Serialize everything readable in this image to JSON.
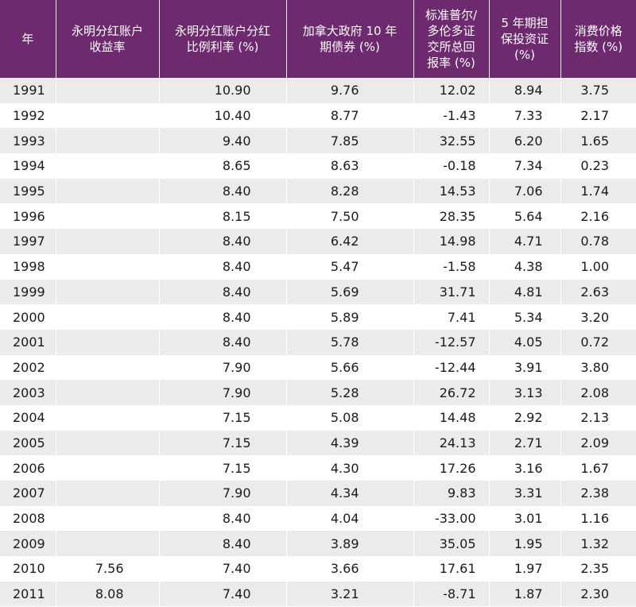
{
  "table": {
    "headers": [
      "年",
      "永明分红账户\n收益率",
      "永明分红账户分红\n比例利率 (%)",
      "加拿大政府 10 年\n期债券 (%)",
      "标准普尔/\n多伦多证\n交所总回\n报率 (%)",
      "5 年期担\n保投资证\n(%)",
      "消费价格\n指数 (%)"
    ],
    "rows": [
      [
        "1991",
        "",
        "10.90",
        "9.76",
        "12.02",
        "8.94",
        "3.75"
      ],
      [
        "1992",
        "",
        "10.40",
        "8.77",
        "-1.43",
        "7.33",
        "2.17"
      ],
      [
        "1993",
        "",
        "9.40",
        "7.85",
        "32.55",
        "6.20",
        "1.65"
      ],
      [
        "1994",
        "",
        "8.65",
        "8.63",
        "-0.18",
        "7.34",
        "0.23"
      ],
      [
        "1995",
        "",
        "8.40",
        "8.28",
        "14.53",
        "7.06",
        "1.74"
      ],
      [
        "1996",
        "",
        "8.15",
        "7.50",
        "28.35",
        "5.64",
        "2.16"
      ],
      [
        "1997",
        "",
        "8.40",
        "6.42",
        "14.98",
        "4.71",
        "0.78"
      ],
      [
        "1998",
        "",
        "8.40",
        "5.47",
        "-1.58",
        "4.38",
        "1.00"
      ],
      [
        "1999",
        "",
        "8.40",
        "5.69",
        "31.71",
        "4.81",
        "2.63"
      ],
      [
        "2000",
        "",
        "8.40",
        "5.89",
        "7.41",
        "5.34",
        "3.20"
      ],
      [
        "2001",
        "",
        "8.40",
        "5.78",
        "-12.57",
        "4.05",
        "0.72"
      ],
      [
        "2002",
        "",
        "7.90",
        "5.66",
        "-12.44",
        "3.91",
        "3.80"
      ],
      [
        "2003",
        "",
        "7.90",
        "5.28",
        "26.72",
        "3.13",
        "2.08"
      ],
      [
        "2004",
        "",
        "7.15",
        "5.08",
        "14.48",
        "2.92",
        "2.13"
      ],
      [
        "2005",
        "",
        "7.15",
        "4.39",
        "24.13",
        "2.71",
        "2.09"
      ],
      [
        "2006",
        "",
        "7.15",
        "4.30",
        "17.26",
        "3.16",
        "1.67"
      ],
      [
        "2007",
        "",
        "7.90",
        "4.34",
        "9.83",
        "3.31",
        "2.38"
      ],
      [
        "2008",
        "",
        "8.40",
        "4.04",
        "-33.00",
        "3.01",
        "1.16"
      ],
      [
        "2009",
        "",
        "8.40",
        "3.89",
        "35.05",
        "1.95",
        "1.32"
      ],
      [
        "2010",
        "7.56",
        "7.40",
        "3.66",
        "17.61",
        "1.97",
        "2.35"
      ],
      [
        "2011",
        "8.08",
        "7.40",
        "3.21",
        "-8.71",
        "1.87",
        "2.30"
      ]
    ]
  },
  "colors": {
    "header_bg": "#6d2a6e",
    "header_text": "#ffffff",
    "row_stripe": "#ebebeb",
    "row_plain": "#ffffff"
  }
}
